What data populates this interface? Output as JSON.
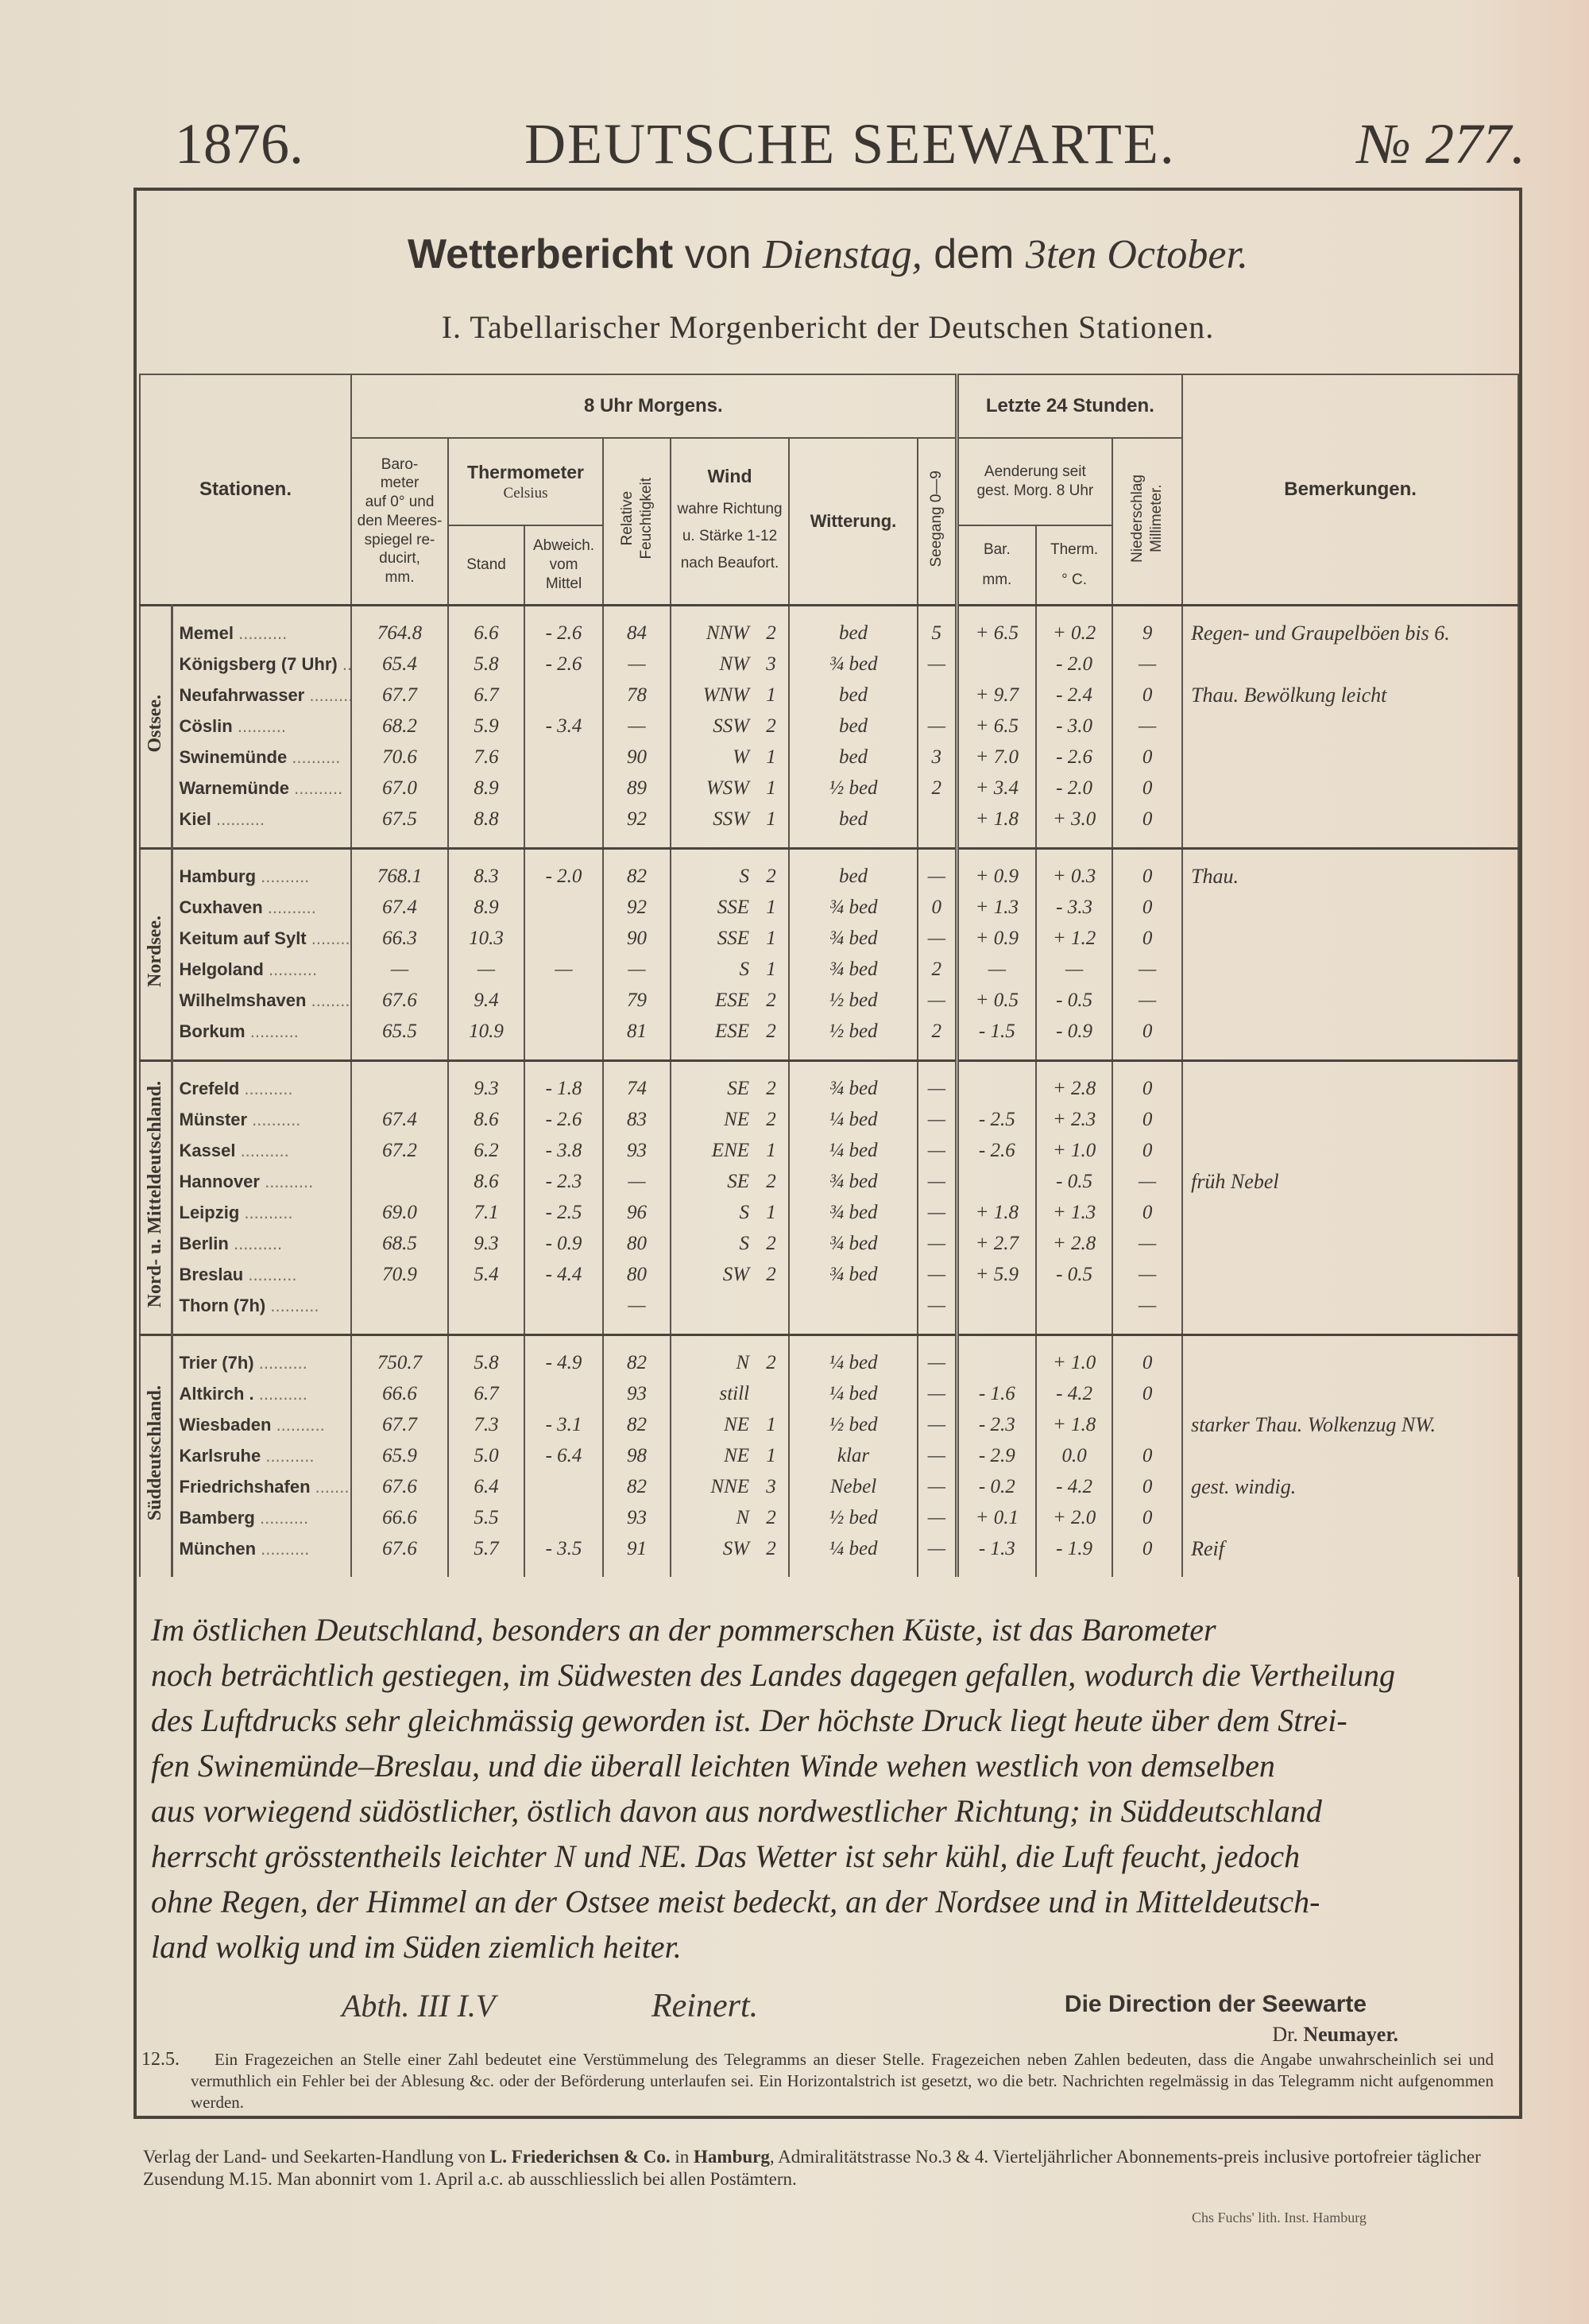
{
  "masthead": {
    "year": "1876.",
    "name": "DEUTSCHE SEEWARTE.",
    "number": "№ 277."
  },
  "title": {
    "prefix": "Wetterbericht",
    "von": "von",
    "weekday": "Dienstag,",
    "dem": "dem",
    "date": "3ten October."
  },
  "subtitle": "I. Tabellarischer Morgenbericht der Deutschen Stationen.",
  "table": {
    "headers": {
      "stationen": "Stationen.",
      "morning": "8 Uhr Morgens.",
      "last24": "Letzte 24 Stunden.",
      "barometer": "Baro-\nmeter\nauf 0° und\nden Meeres-\nspiegel re-\nducirt,\nmm.",
      "thermometer": "Thermometer",
      "celsius": "Celsius",
      "stand": "Stand",
      "abweich": "Abweich.\nvom\nMittel",
      "feuchtigkeit": "Relative\nFeuchtigkeit",
      "wind": "Wind",
      "wind_sub": "wahre Richtung\nu. Stärke 1-12\nnach Beaufort.",
      "witterung": "Witterung.",
      "seegang": "Seegang 0—9",
      "aenderung": "Aenderung seit\ngest. Morg. 8 Uhr",
      "bar": "Bar.\nmm.",
      "therm": "Therm.\n° C.",
      "niederschlag": "Niederschlag\nMillimeter.",
      "bemerkungen": "Bemerkungen."
    },
    "groups": [
      {
        "name": "Ostsee.",
        "rows": [
          [
            "Memel",
            "764.8",
            "6.6",
            "- 2.6",
            "84",
            "NNW",
            "2",
            "bed",
            "5",
            "+ 6.5",
            "+ 0.2",
            "9",
            "Regen- und Graupelböen bis 6."
          ],
          [
            "Königsberg (7 Uhr)",
            "65.4",
            "5.8",
            "- 2.6",
            "—",
            "NW",
            "3",
            "¾ bed",
            "—",
            "",
            "- 2.0",
            "—",
            ""
          ],
          [
            "Neufahrwasser",
            "67.7",
            "6.7",
            "",
            "78",
            "WNW",
            "1",
            "bed",
            "",
            "+ 9.7",
            "- 2.4",
            "0",
            "Thau. Bewölkung leicht"
          ],
          [
            "Cöslin",
            "68.2",
            "5.9",
            "- 3.4",
            "—",
            "SSW",
            "2",
            "bed",
            "—",
            "+ 6.5",
            "- 3.0",
            "—",
            ""
          ],
          [
            "Swinemünde",
            "70.6",
            "7.6",
            "",
            "90",
            "W",
            "1",
            "bed",
            "3",
            "+ 7.0",
            "- 2.6",
            "0",
            ""
          ],
          [
            "Warnemünde",
            "67.0",
            "8.9",
            "",
            "89",
            "WSW",
            "1",
            "½ bed",
            "2",
            "+ 3.4",
            "- 2.0",
            "0",
            ""
          ],
          [
            "Kiel",
            "67.5",
            "8.8",
            "",
            "92",
            "SSW",
            "1",
            "bed",
            "",
            "+ 1.8",
            "+ 3.0",
            "0",
            ""
          ]
        ]
      },
      {
        "name": "Nordsee.",
        "rows": [
          [
            "Hamburg",
            "768.1",
            "8.3",
            "- 2.0",
            "82",
            "S",
            "2",
            "bed",
            "—",
            "+ 0.9",
            "+ 0.3",
            "0",
            "Thau."
          ],
          [
            "Cuxhaven",
            "67.4",
            "8.9",
            "",
            "92",
            "SSE",
            "1",
            "¾ bed",
            "0",
            "+ 1.3",
            "- 3.3",
            "0",
            ""
          ],
          [
            "Keitum auf Sylt",
            "66.3",
            "10.3",
            "",
            "90",
            "SSE",
            "1",
            "¾ bed",
            "—",
            "+ 0.9",
            "+ 1.2",
            "0",
            ""
          ],
          [
            "Helgoland",
            "—",
            "—",
            "—",
            "—",
            "S",
            "1",
            "¾ bed",
            "2",
            "—",
            "—",
            "—",
            ""
          ],
          [
            "Wilhelmshaven",
            "67.6",
            "9.4",
            "",
            "79",
            "ESE",
            "2",
            "½ bed",
            "—",
            "+ 0.5",
            "- 0.5",
            "—",
            ""
          ],
          [
            "Borkum",
            "65.5",
            "10.9",
            "",
            "81",
            "ESE",
            "2",
            "½ bed",
            "2",
            "- 1.5",
            "- 0.9",
            "0",
            ""
          ]
        ]
      },
      {
        "name": "Nord- u. Mitteldeutschland.",
        "rows": [
          [
            "Crefeld",
            "",
            "9.3",
            "- 1.8",
            "74",
            "SE",
            "2",
            "¾ bed",
            "—",
            "",
            "+ 2.8",
            "0",
            ""
          ],
          [
            "Münster",
            "67.4",
            "8.6",
            "- 2.6",
            "83",
            "NE",
            "2",
            "¼ bed",
            "—",
            "- 2.5",
            "+ 2.3",
            "0",
            ""
          ],
          [
            "Kassel",
            "67.2",
            "6.2",
            "- 3.8",
            "93",
            "ENE",
            "1",
            "¼ bed",
            "—",
            "- 2.6",
            "+ 1.0",
            "0",
            ""
          ],
          [
            "Hannover",
            "",
            "8.6",
            "- 2.3",
            "—",
            "SE",
            "2",
            "¾ bed",
            "—",
            "",
            "- 0.5",
            "—",
            "früh Nebel"
          ],
          [
            "Leipzig",
            "69.0",
            "7.1",
            "- 2.5",
            "96",
            "S",
            "1",
            "¾ bed",
            "—",
            "+ 1.8",
            "+ 1.3",
            "0",
            ""
          ],
          [
            "Berlin",
            "68.5",
            "9.3",
            "- 0.9",
            "80",
            "S",
            "2",
            "¾ bed",
            "—",
            "+ 2.7",
            "+ 2.8",
            "—",
            ""
          ],
          [
            "Breslau",
            "70.9",
            "5.4",
            "- 4.4",
            "80",
            "SW",
            "2",
            "¾ bed",
            "—",
            "+ 5.9",
            "- 0.5",
            "—",
            ""
          ],
          [
            "Thorn (7h)",
            "",
            "",
            "",
            "—",
            "",
            "",
            "",
            "—",
            "",
            "",
            "—",
            ""
          ]
        ]
      },
      {
        "name": "Süddeutschland.",
        "rows": [
          [
            "Trier (7h)",
            "750.7",
            "5.8",
            "- 4.9",
            "82",
            "N",
            "2",
            "¼ bed",
            "—",
            "",
            "+ 1.0",
            "0",
            ""
          ],
          [
            "Altkirch .",
            "66.6",
            "6.7",
            "",
            "93",
            "still",
            "",
            "¼ bed",
            "—",
            "- 1.6",
            "- 4.2",
            "0",
            ""
          ],
          [
            "Wiesbaden",
            "67.7",
            "7.3",
            "- 3.1",
            "82",
            "NE",
            "1",
            "½ bed",
            "—",
            "- 2.3",
            "+ 1.8",
            "",
            "starker Thau. Wolkenzug NW."
          ],
          [
            "Karlsruhe",
            "65.9",
            "5.0",
            "- 6.4",
            "98",
            "NE",
            "1",
            "klar",
            "—",
            "- 2.9",
            "0.0",
            "0",
            ""
          ],
          [
            "Friedrichshafen",
            "67.6",
            "6.4",
            "",
            "82",
            "NNE",
            "3",
            "Nebel",
            "—",
            "- 0.2",
            "- 4.2",
            "0",
            "gest. windig."
          ],
          [
            "Bamberg",
            "66.6",
            "5.5",
            "",
            "93",
            "N",
            "2",
            "½ bed",
            "—",
            "+ 0.1",
            "+ 2.0",
            "0",
            ""
          ],
          [
            "München",
            "67.6",
            "5.7",
            "- 3.5",
            "91",
            "SW",
            "2",
            "¼ bed",
            "—",
            "- 1.3",
            "- 1.9",
            "0",
            "Reif"
          ]
        ]
      }
    ]
  },
  "report_lines": [
    "Im östlichen Deutschland, besonders an der pommerschen Küste, ist das Barometer",
    "noch beträchtlich gestiegen, im Südwesten des Landes dagegen gefallen, wodurch die Vertheilung",
    "des Luftdrucks sehr gleichmässig geworden ist. Der höchste Druck liegt heute über dem Strei-",
    "fen Swinemünde–Breslau, und die überall leichten Winde wehen westlich von demselben",
    "aus vorwiegend südöstlicher, östlich davon aus nordwestlicher Richtung; in Süddeutschland",
    "herrscht grösstentheils leichter N und NE. Das Wetter ist sehr kühl, die Luft feucht, jedoch",
    "ohne Regen, der Himmel an der Ostsee meist bedeckt, an der Nordsee und in Mitteldeutsch-",
    "land wolkig und im Süden ziemlich heiter."
  ],
  "signature": {
    "dept": "Abth. III  I.V",
    "name": "Reinert."
  },
  "direction": {
    "line1": "Die Direction der Seewarte",
    "dr": "Dr.",
    "name": "Neumayer."
  },
  "code": "12.5.",
  "notes": "Ein Fragezeichen an Stelle einer Zahl bedeutet eine Verstümmelung des Telegramms an dieser Stelle. Fragezeichen neben Zahlen bedeuten, dass die Angabe unwahrscheinlich sei und vermuthlich ein Fehler bei der Ablesung &c. oder der Beförderung unterlaufen sei. Ein Horizontalstrich ist gesetzt, wo die betr. Nachrichten regelmässig in das Telegramm nicht aufgenommen werden.",
  "footer": {
    "pre": "Verlag der Land- und Seekarten-Handlung von",
    "publisher": "L. Friederichsen & Co.",
    "mid": "in",
    "city": "Hamburg",
    "post": ", Admiralitätstrasse No.3 & 4. Vierteljährlicher Abonnements-preis inclusive portofreier täglicher Zusendung M.15. Man abonnirt vom 1. April a.c. ab ausschliesslich bei allen Postämtern."
  },
  "litho": "Chs Fuchs' lith. Inst. Hamburg"
}
